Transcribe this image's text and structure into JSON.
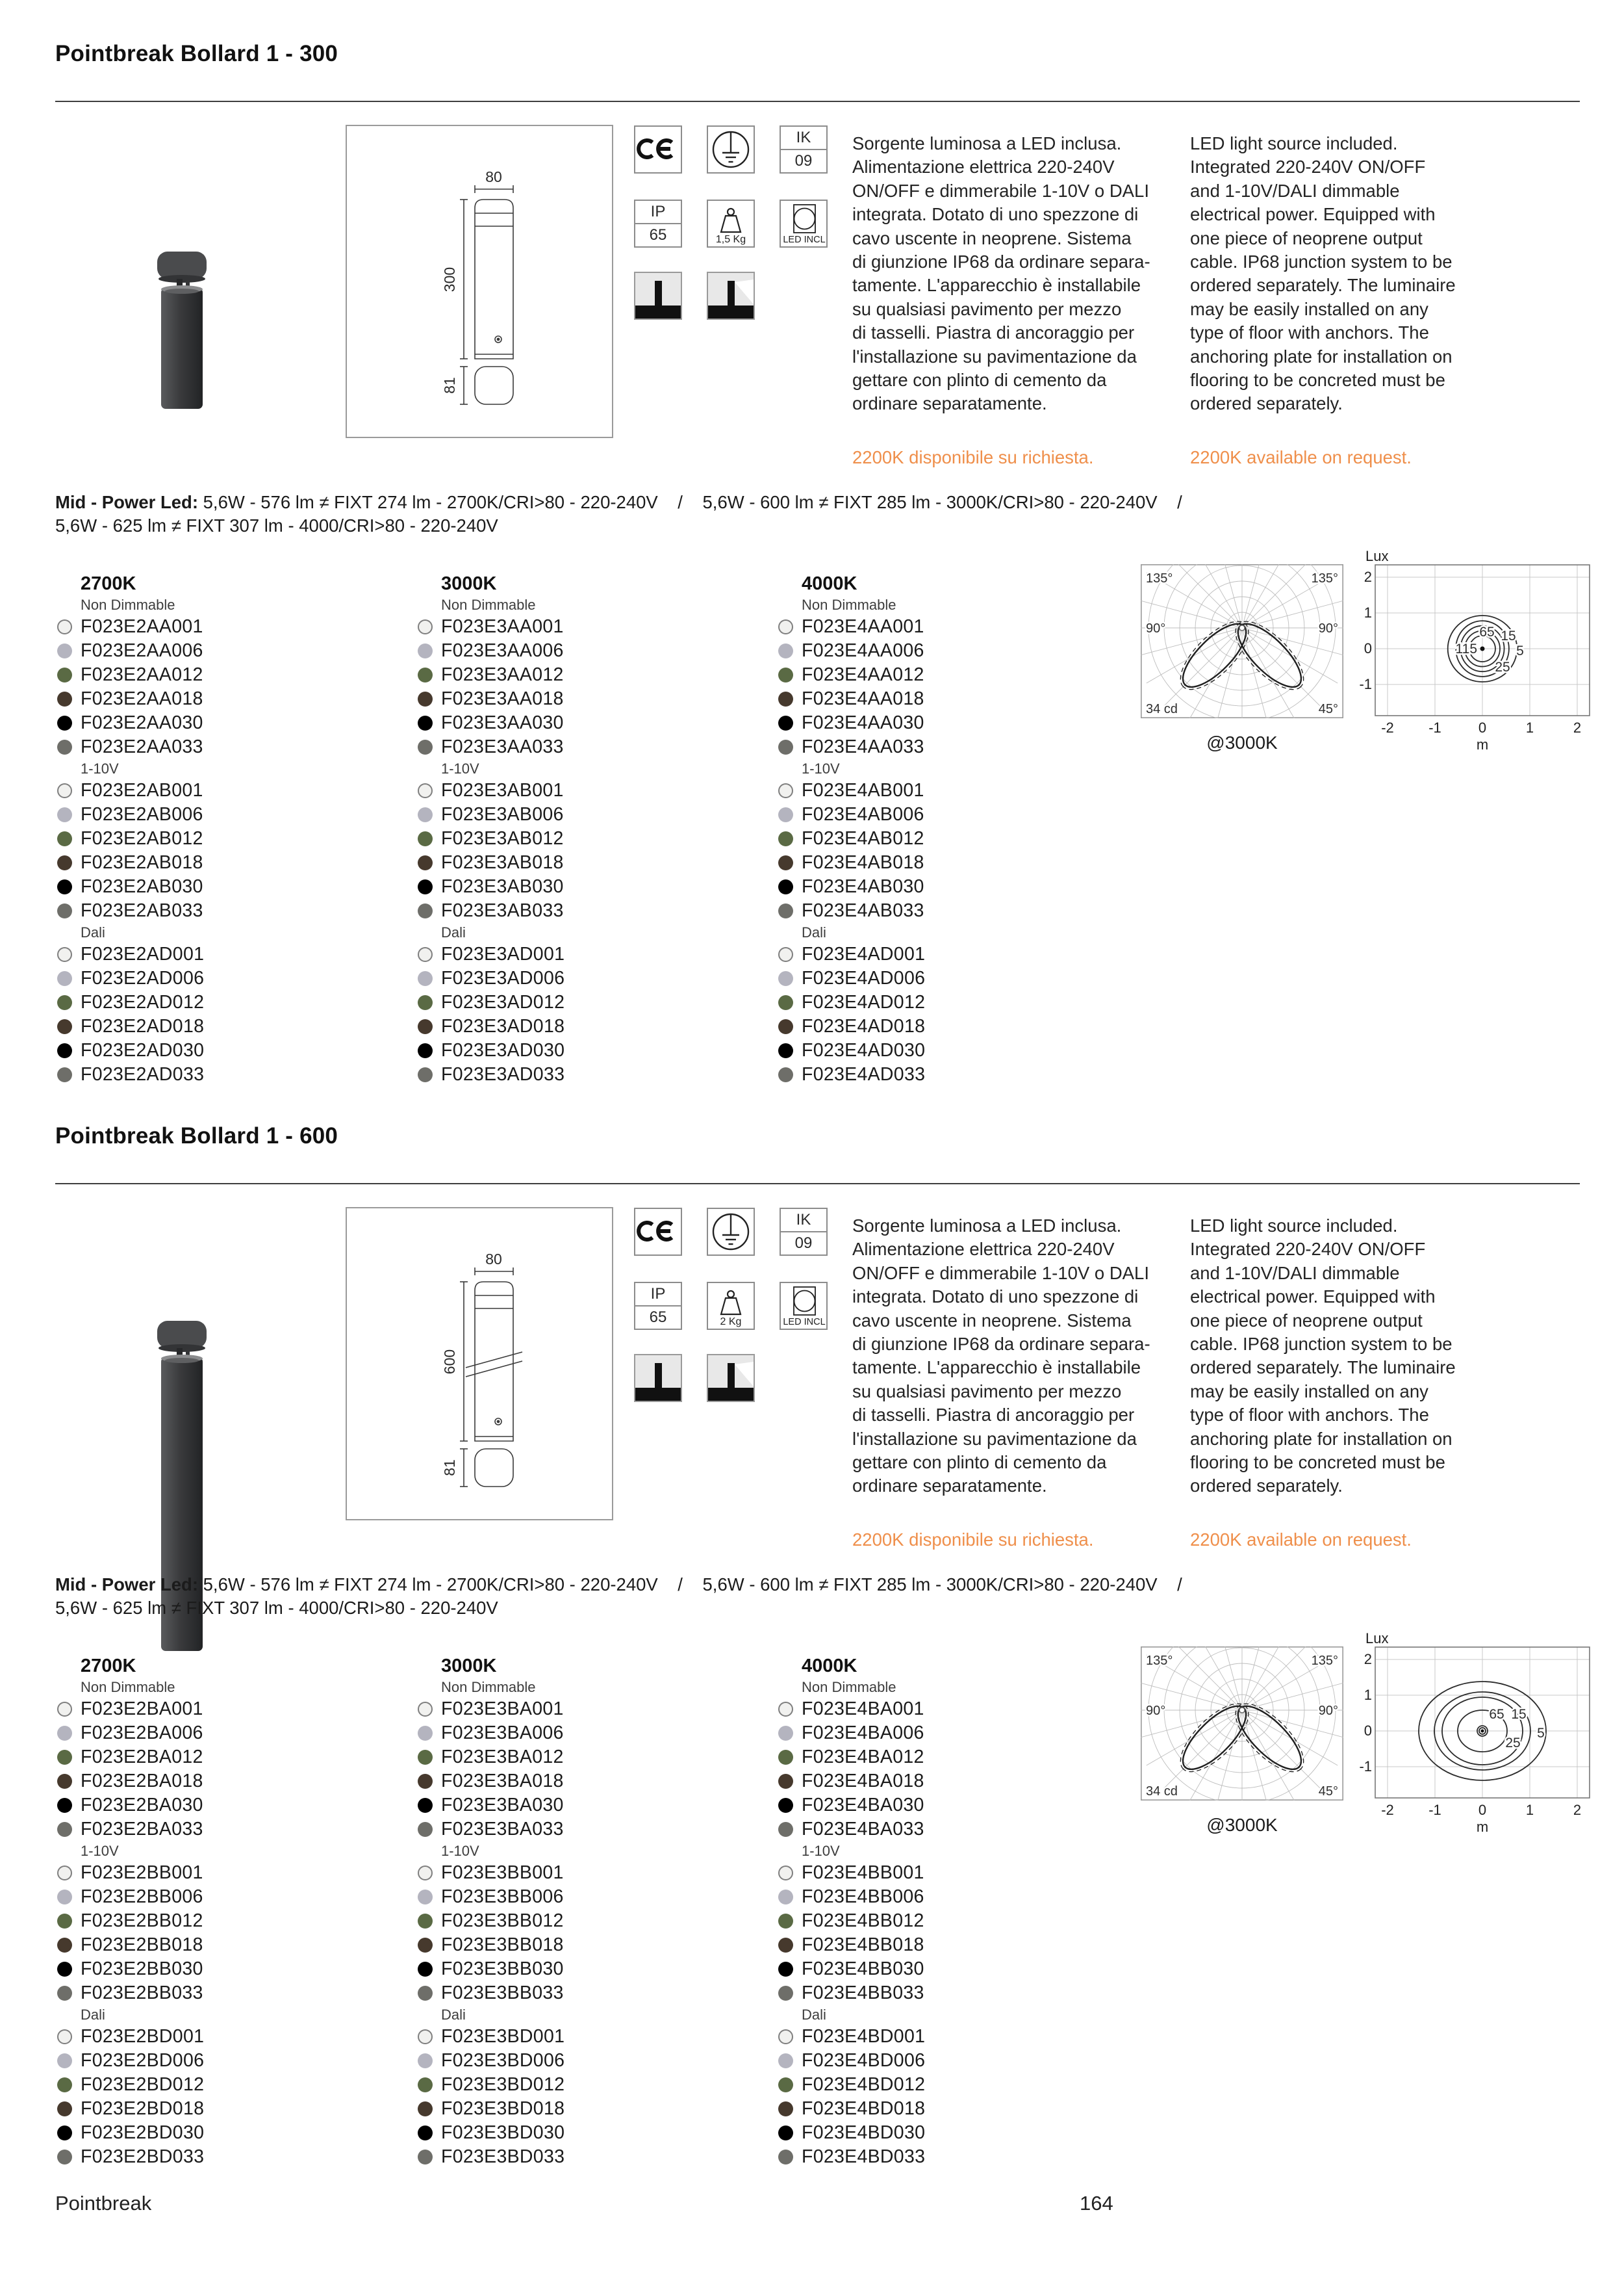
{
  "page": {
    "footer_brand": "Pointbreak",
    "footer_page": "164"
  },
  "colors": {
    "accent_orange": "#EF8F4B",
    "rule": "#3F3F3F",
    "dot_white": "#F1F1EF",
    "dot_white_border": "#7F7F7F",
    "dot_grey": "#B4B4BF",
    "dot_green": "#5A6A44",
    "dot_brown": "#46392D",
    "dot_black": "#000000",
    "dot_anthracite": "#6E6E69"
  },
  "dot_cycle": [
    "white",
    "grey",
    "green",
    "brown",
    "black",
    "anthracite"
  ],
  "icon_names": [
    "ce-mark",
    "protective-earth",
    "ik-rating",
    "ip-rating",
    "weight",
    "led-included",
    "bollard-pictogram",
    "bollard-light-pictogram"
  ],
  "sections": [
    {
      "title": "Pointbreak Bollard 1 - 300",
      "dims": {
        "width": "80",
        "height": "300",
        "base": "81"
      },
      "icons": {
        "ce": "CE",
        "ik_label": "IK",
        "ik_value": "09",
        "ip_label": "IP",
        "ip_value": "65",
        "weight_label": "1,5 Kg",
        "led_label": "LED INCL"
      },
      "description_it_lines": [
        "Sorgente luminosa a LED inclusa.",
        "Alimentazione elettrica 220-240V",
        "ON/OFF e dimmerabile 1-10V o DALI",
        "integrata. Dotato di uno spezzone di",
        "cavo uscente in neoprene. Sistema",
        "di giunzione IP68 da ordinare separa-",
        "tamente. L'apparecchio è installabile",
        "su qualsiasi pavimento per mezzo",
        "di tasselli. Piastra di ancoraggio per",
        "l'installazione su pavimentazione da",
        "gettare con plinto di cemento da",
        "ordinare separatamente."
      ],
      "note_it": "2200K disponibile su richiesta.",
      "description_en_lines": [
        "LED light source included.",
        "Integrated 220-240V ON/OFF",
        "and 1-10V/DALI dimmable",
        "electrical power. Equipped with",
        "one piece of neoprene output",
        "cable. IP68 junction system to be",
        "ordered separately. The luminaire",
        "may be easily installed on any",
        "type of floor with anchors. The",
        "anchoring plate for installation on",
        "flooring to be concreted must be",
        "ordered separately."
      ],
      "note_en": "2200K available on request.",
      "spec_bold": "Mid - Power Led:",
      "spec_rest": " 5,6W - 576 lm ≠ FIXT 274 lm - 2700K/CRI>80 - 220-240V    /    5,6W - 600 lm ≠ FIXT 285 lm - 3000K/CRI>80 - 220-240V    /\n5,6W - 625 lm ≠ FIXT 307 lm - 4000/CRI>80 - 220-240V",
      "columns": [
        {
          "header": "2700K",
          "groups": [
            {
              "label": "Non Dimmable",
              "codes": [
                "F023E2AA001",
                "F023E2AA006",
                "F023E2AA012",
                "F023E2AA018",
                "F023E2AA030",
                "F023E2AA033"
              ]
            },
            {
              "label": "1-10V",
              "codes": [
                "F023E2AB001",
                "F023E2AB006",
                "F023E2AB012",
                "F023E2AB018",
                "F023E2AB030",
                "F023E2AB033"
              ]
            },
            {
              "label": "Dali",
              "codes": [
                "F023E2AD001",
                "F023E2AD006",
                "F023E2AD012",
                "F023E2AD018",
                "F023E2AD030",
                "F023E2AD033"
              ]
            }
          ]
        },
        {
          "header": "3000K",
          "groups": [
            {
              "label": "Non Dimmable",
              "codes": [
                "F023E3AA001",
                "F023E3AA006",
                "F023E3AA012",
                "F023E3AA018",
                "F023E3AA030",
                "F023E3AA033"
              ]
            },
            {
              "label": "1-10V",
              "codes": [
                "F023E3AB001",
                "F023E3AB006",
                "F023E3AB012",
                "F023E3AB018",
                "F023E3AB030",
                "F023E3AB033"
              ]
            },
            {
              "label": "Dali",
              "codes": [
                "F023E3AD001",
                "F023E3AD006",
                "F023E3AD012",
                "F023E3AD018",
                "F023E3AD030",
                "F023E3AD033"
              ]
            }
          ]
        },
        {
          "header": "4000K",
          "groups": [
            {
              "label": "Non Dimmable",
              "codes": [
                "F023E4AA001",
                "F023E4AA006",
                "F023E4AA012",
                "F023E4AA018",
                "F023E4AA030",
                "F023E4AA033"
              ]
            },
            {
              "label": "1-10V",
              "codes": [
                "F023E4AB001",
                "F023E4AB006",
                "F023E4AB012",
                "F023E4AB018",
                "F023E4AB030",
                "F023E4AB033"
              ]
            },
            {
              "label": "Dali",
              "codes": [
                "F023E4AD001",
                "F023E4AD006",
                "F023E4AD012",
                "F023E4AD018",
                "F023E4AD030",
                "F023E4AD033"
              ]
            }
          ]
        }
      ],
      "polar": {
        "top_left": "135°",
        "top_right": "135°",
        "mid_left": "90°",
        "mid_right": "90°",
        "bottom_left": "34 cd",
        "bottom_right": "45°",
        "caption": "@3000K"
      },
      "lux": {
        "axis_label": "Lux",
        "x_label": "m",
        "y_ticks": [
          "2",
          "1",
          "0",
          "-1"
        ],
        "x_ticks": [
          "-2",
          "-1",
          "0",
          "1",
          "2"
        ],
        "contour_labels": [
          "115",
          "65",
          "25",
          "15",
          "5"
        ]
      }
    },
    {
      "title": "Pointbreak Bollard 1 - 600",
      "dims": {
        "width": "80",
        "height": "600",
        "base": "81"
      },
      "icons": {
        "ce": "CE",
        "ik_label": "IK",
        "ik_value": "09",
        "ip_label": "IP",
        "ip_value": "65",
        "weight_label": "2 Kg",
        "led_label": "LED INCL"
      },
      "description_it_lines": [
        "Sorgente luminosa a LED inclusa.",
        "Alimentazione elettrica 220-240V",
        "ON/OFF e dimmerabile 1-10V o DALI",
        "integrata. Dotato di uno spezzone di",
        "cavo uscente in neoprene. Sistema",
        "di giunzione IP68 da ordinare separa-",
        "tamente. L'apparecchio è installabile",
        "su qualsiasi pavimento per mezzo",
        "di tasselli. Piastra di ancoraggio per",
        "l'installazione su pavimentazione da",
        "gettare con plinto di cemento da",
        "ordinare separatamente."
      ],
      "note_it": "2200K disponibile su richiesta.",
      "description_en_lines": [
        "LED light source included.",
        "Integrated 220-240V ON/OFF",
        "and 1-10V/DALI dimmable",
        "electrical power. Equipped with",
        "one piece of neoprene output",
        "cable. IP68 junction system to be",
        "ordered separately. The luminaire",
        "may be easily installed on any",
        "type of floor with anchors. The",
        "anchoring plate for installation on",
        "flooring to be concreted must be",
        "ordered separately."
      ],
      "note_en": "2200K available on request.",
      "spec_bold": "Mid - Power Led:",
      "spec_rest": " 5,6W - 576 lm ≠ FIXT 274 lm - 2700K/CRI>80 - 220-240V    /    5,6W - 600 lm ≠ FIXT 285 lm - 3000K/CRI>80 - 220-240V    /\n5,6W - 625 lm ≠ FIXT 307 lm - 4000/CRI>80 - 220-240V",
      "columns": [
        {
          "header": "2700K",
          "groups": [
            {
              "label": "Non Dimmable",
              "codes": [
                "F023E2BA001",
                "F023E2BA006",
                "F023E2BA012",
                "F023E2BA018",
                "F023E2BA030",
                "F023E2BA033"
              ]
            },
            {
              "label": "1-10V",
              "codes": [
                "F023E2BB001",
                "F023E2BB006",
                "F023E2BB012",
                "F023E2BB018",
                "F023E2BB030",
                "F023E2BB033"
              ]
            },
            {
              "label": "Dali",
              "codes": [
                "F023E2BD001",
                "F023E2BD006",
                "F023E2BD012",
                "F023E2BD018",
                "F023E2BD030",
                "F023E2BD033"
              ]
            }
          ]
        },
        {
          "header": "3000K",
          "groups": [
            {
              "label": "Non Dimmable",
              "codes": [
                "F023E3BA001",
                "F023E3BA006",
                "F023E3BA012",
                "F023E3BA018",
                "F023E3BA030",
                "F023E3BA033"
              ]
            },
            {
              "label": "1-10V",
              "codes": [
                "F023E3BB001",
                "F023E3BB006",
                "F023E3BB012",
                "F023E3BB018",
                "F023E3BB030",
                "F023E3BB033"
              ]
            },
            {
              "label": "Dali",
              "codes": [
                "F023E3BD001",
                "F023E3BD006",
                "F023E3BD012",
                "F023E3BD018",
                "F023E3BD030",
                "F023E3BD033"
              ]
            }
          ]
        },
        {
          "header": "4000K",
          "groups": [
            {
              "label": "Non Dimmable",
              "codes": [
                "F023E4BA001",
                "F023E4BA006",
                "F023E4BA012",
                "F023E4BA018",
                "F023E4BA030",
                "F023E4BA033"
              ]
            },
            {
              "label": "1-10V",
              "codes": [
                "F023E4BB001",
                "F023E4BB006",
                "F023E4BB012",
                "F023E4BB018",
                "F023E4BB030",
                "F023E4BB033"
              ]
            },
            {
              "label": "Dali",
              "codes": [
                "F023E4BD001",
                "F023E4BD006",
                "F023E4BD012",
                "F023E4BD018",
                "F023E4BD030",
                "F023E4BD033"
              ]
            }
          ]
        }
      ],
      "polar": {
        "top_left": "135°",
        "top_right": "135°",
        "mid_left": "90°",
        "mid_right": "90°",
        "bottom_left": "34 cd",
        "bottom_right": "45°",
        "caption": "@3000K"
      },
      "lux": {
        "axis_label": "Lux",
        "x_label": "m",
        "y_ticks": [
          "2",
          "1",
          "0",
          "-1"
        ],
        "x_ticks": [
          "-2",
          "-1",
          "0",
          "1",
          "2"
        ],
        "contour_labels": [
          "65",
          "25",
          "15",
          "5"
        ]
      }
    }
  ]
}
